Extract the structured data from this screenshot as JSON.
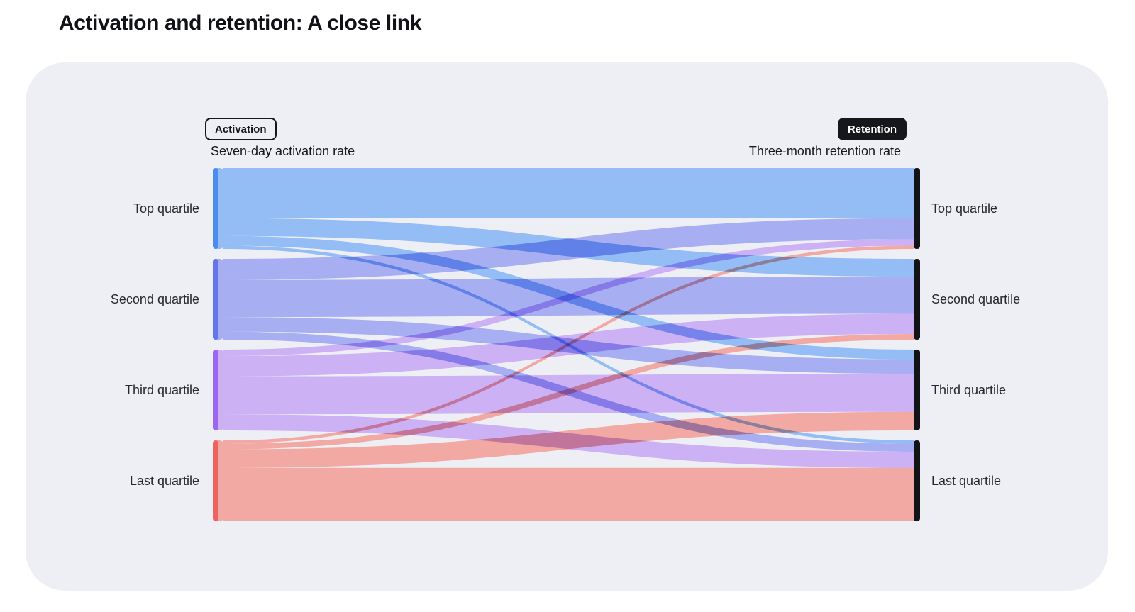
{
  "page": {
    "title": "Activation and retention: A close link"
  },
  "sankey": {
    "activation_badge": "Activation",
    "activation_axis_label": "Seven-day activation rate",
    "retention_badge": "Retention",
    "retention_axis_label": "Three-month retention rate"
  },
  "chart_data": {
    "type": "sankey",
    "title": "Activation and retention: A close link",
    "columns": [
      {
        "badge": "Activation",
        "axis_label": "Seven-day activation rate"
      },
      {
        "badge": "Retention",
        "axis_label": "Three-month retention rate"
      }
    ],
    "nodes": [
      "Top quartile",
      "Second quartile",
      "Third quartile",
      "Last quartile"
    ],
    "units": "share of source quartile (%), estimated from flow band widths (no numeric labels shown)",
    "flow_matrix": [
      [
        62,
        22,
        12,
        4
      ],
      [
        26,
        46,
        18,
        10
      ],
      [
        8,
        25,
        47,
        20
      ],
      [
        4,
        7,
        23,
        66
      ]
    ],
    "colors": {
      "flows": [
        "#93bdf4",
        "#a7aef2",
        "#cdb1f5",
        "#f2a9a3"
      ],
      "left_node_bars": [
        "#4a8cf2",
        "#6274ee",
        "#9b66f3",
        "#ee6260"
      ],
      "right_node_bar": "#121317",
      "card_background": "#edeff5",
      "text": "#17181c"
    },
    "layout_hints": {
      "left_column_header": "Activation",
      "right_column_header": "Retention",
      "node_order_top_to_bottom": [
        "Top quartile",
        "Second quartile",
        "Third quartile",
        "Last quartile"
      ],
      "grid": false,
      "legend": false
    }
  }
}
